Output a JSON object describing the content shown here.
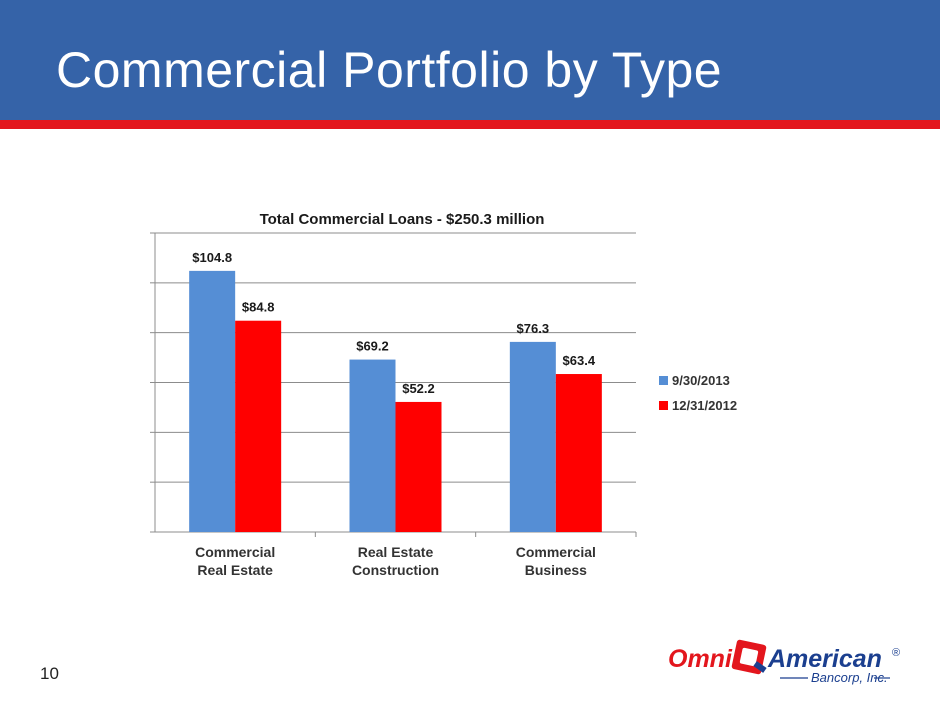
{
  "slide": {
    "title": "Commercial Portfolio by Type",
    "page_number": "10"
  },
  "logo": {
    "text_left": "Omni",
    "text_right": "American",
    "registered": "®",
    "subtitle": "Bancorp, Inc.",
    "colors": {
      "red": "#e3161d",
      "blue": "#1b3f8f"
    }
  },
  "chart_data": {
    "type": "bar",
    "title": "Total Commercial Loans - $250.3 million",
    "categories": [
      [
        "Commercial",
        "Real Estate"
      ],
      [
        "Real Estate",
        "Construction"
      ],
      [
        "Commercial",
        "Business"
      ]
    ],
    "series": [
      {
        "name": "9/30/2013",
        "values": [
          104.8,
          69.2,
          76.3
        ],
        "labels": [
          "$104.8",
          "$69.2",
          "$76.3"
        ],
        "color": "#558ed5"
      },
      {
        "name": "12/31/2012",
        "values": [
          84.8,
          52.2,
          63.4
        ],
        "labels": [
          "$84.8",
          "$52.2",
          "$63.4"
        ],
        "color": "#ff0000"
      }
    ],
    "ylim": [
      0,
      120
    ],
    "ytick_step": 20,
    "ytick_labels_visible": false,
    "grid": true,
    "legend": "right"
  }
}
